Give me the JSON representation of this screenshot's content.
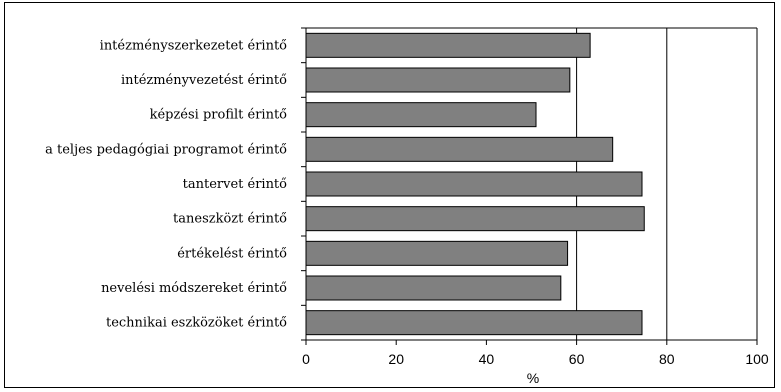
{
  "chart_data": {
    "type": "bar",
    "orientation": "horizontal",
    "categories": [
      "intézményszerkezetet érintő",
      "intézményvezetést érintő",
      "képzési profilt érintő",
      "a teljes pedagógiai programot érintő",
      "tantervet érintő",
      "taneszközt érintő",
      "értékelést érintő",
      "nevelési módszereket érintő",
      "technikai eszközöket érintő"
    ],
    "values": [
      63,
      58.5,
      51,
      68,
      74.5,
      75,
      58,
      56.5,
      74.5
    ],
    "xlabel": "%",
    "xlim": [
      0,
      100
    ],
    "xticks": [
      0,
      20,
      40,
      60,
      80,
      100
    ],
    "grid_x": [
      60,
      80
    ],
    "colors": {
      "bar": "#808080",
      "bar_stroke": "#000000"
    }
  }
}
